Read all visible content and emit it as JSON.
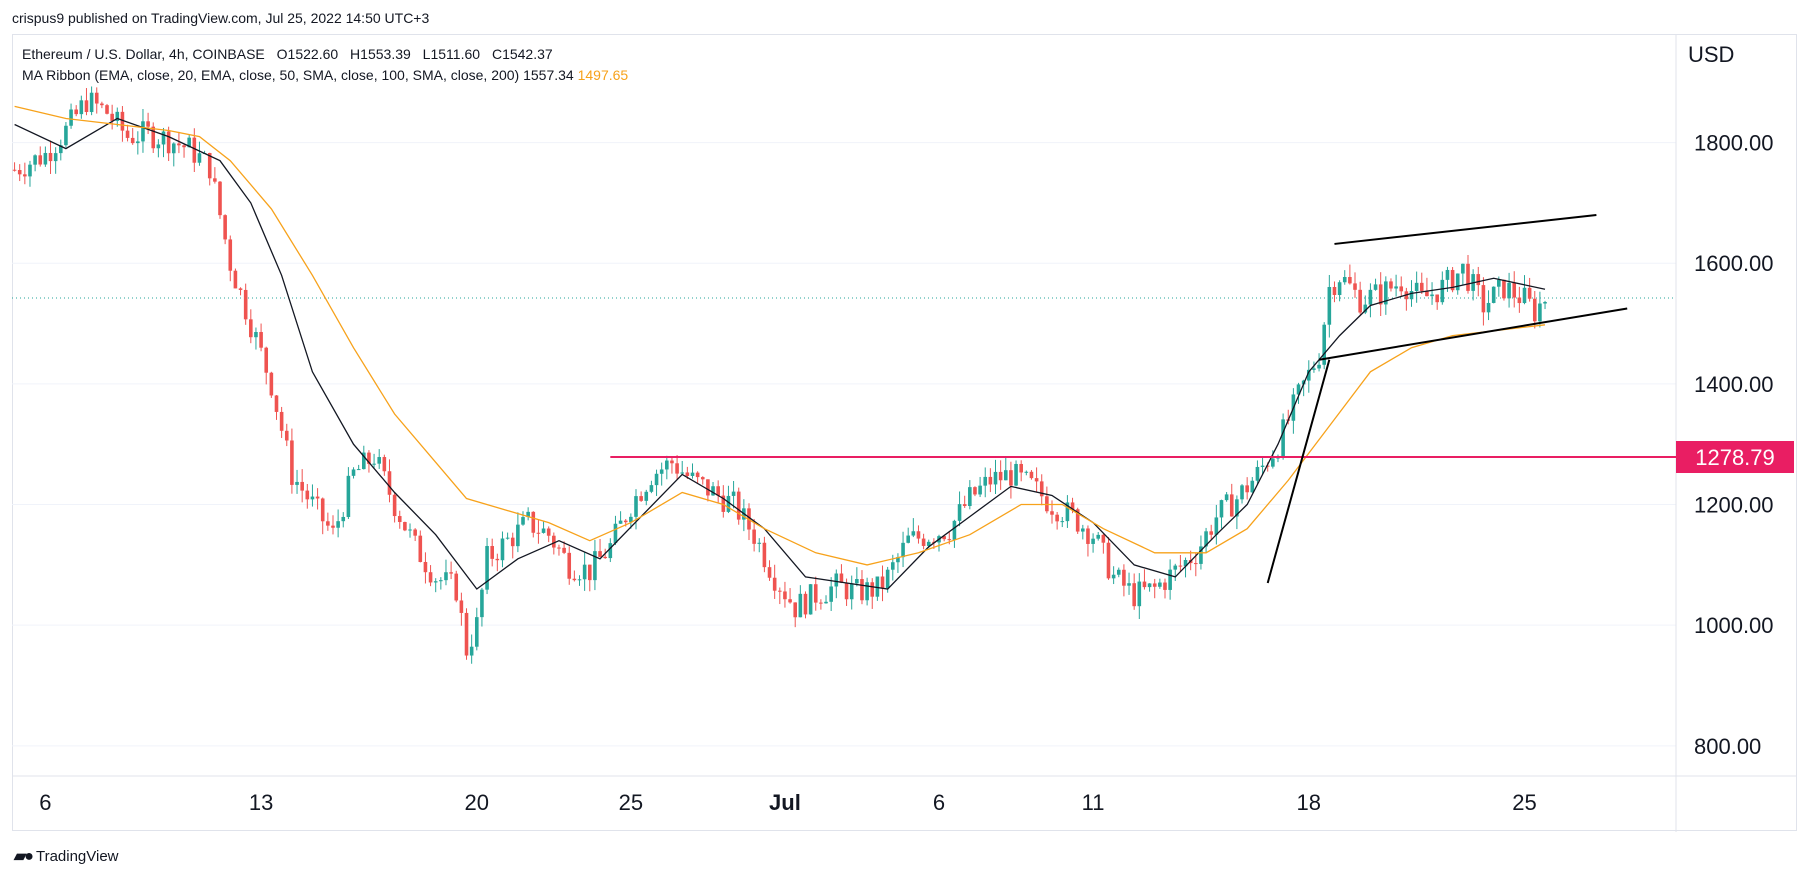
{
  "header": {
    "published": "crispus9 published on TradingView.com, Jul 25, 2022 14:50 UTC+3"
  },
  "legend": {
    "symbol": "Ethereum / U.S. Dollar, 4h, COINBASE",
    "o_label": "O",
    "o": "1522.60",
    "h_label": "H",
    "h": "1553.39",
    "l_label": "L",
    "l": "1511.60",
    "c_label": "C",
    "c": "1542.37",
    "indicator": "MA Ribbon (EMA, close, 20, EMA, close, 50, SMA, close, 100, SMA, close, 200)",
    "ma1": "1557.34",
    "ma2": "1497.65"
  },
  "footer": {
    "brand": "TradingView"
  },
  "colors": {
    "up": "#26a69a",
    "down": "#ef5350",
    "ema20": "#131722",
    "ema50": "#f7a21b",
    "level": "#e91e63",
    "grid": "#e0e3eb"
  },
  "chart_data": {
    "type": "candlestick",
    "currency": "USD",
    "last_price": 1542.37,
    "ylim": [
      750,
      1980
    ],
    "y_ticks": [
      "800.00",
      "1000.00",
      "1200.00",
      "1400.00",
      "1600.00",
      "1800.00"
    ],
    "y_tick_values": [
      800,
      1000,
      1200,
      1400,
      1600,
      1800
    ],
    "x_labels": [
      "6",
      "13",
      "20",
      "25",
      "Jul",
      "6",
      "11",
      "18",
      "25"
    ],
    "x_label_index": [
      6,
      48,
      90,
      120,
      150,
      180,
      210,
      252,
      294
    ],
    "horizontal_level": {
      "value": 1278.79,
      "label": "1278.79",
      "from_index": 116
    },
    "close_path": [
      [
        0,
        1755
      ],
      [
        6,
        1780
      ],
      [
        10,
        1820
      ],
      [
        14,
        1870
      ],
      [
        18,
        1850
      ],
      [
        22,
        1810
      ],
      [
        26,
        1815
      ],
      [
        30,
        1805
      ],
      [
        34,
        1790
      ],
      [
        38,
        1760
      ],
      [
        42,
        1600
      ],
      [
        46,
        1500
      ],
      [
        50,
        1400
      ],
      [
        54,
        1250
      ],
      [
        58,
        1200
      ],
      [
        62,
        1150
      ],
      [
        66,
        1250
      ],
      [
        70,
        1280
      ],
      [
        74,
        1200
      ],
      [
        78,
        1130
      ],
      [
        82,
        1080
      ],
      [
        86,
        1060
      ],
      [
        88,
        960
      ],
      [
        90,
        1000
      ],
      [
        92,
        1110
      ],
      [
        96,
        1140
      ],
      [
        100,
        1170
      ],
      [
        104,
        1150
      ],
      [
        108,
        1100
      ],
      [
        112,
        1090
      ],
      [
        116,
        1130
      ],
      [
        120,
        1200
      ],
      [
        124,
        1250
      ],
      [
        128,
        1270
      ],
      [
        132,
        1240
      ],
      [
        136,
        1220
      ],
      [
        140,
        1200
      ],
      [
        144,
        1150
      ],
      [
        148,
        1080
      ],
      [
        152,
        1030
      ],
      [
        156,
        1050
      ],
      [
        160,
        1065
      ],
      [
        164,
        1055
      ],
      [
        168,
        1060
      ],
      [
        170,
        1080
      ],
      [
        174,
        1140
      ],
      [
        178,
        1150
      ],
      [
        182,
        1160
      ],
      [
        186,
        1210
      ],
      [
        190,
        1240
      ],
      [
        194,
        1250
      ],
      [
        198,
        1230
      ],
      [
        202,
        1200
      ],
      [
        206,
        1180
      ],
      [
        210,
        1150
      ],
      [
        214,
        1080
      ],
      [
        218,
        1050
      ],
      [
        222,
        1060
      ],
      [
        226,
        1090
      ],
      [
        230,
        1120
      ],
      [
        234,
        1180
      ],
      [
        238,
        1210
      ],
      [
        242,
        1250
      ],
      [
        246,
        1300
      ],
      [
        250,
        1380
      ],
      [
        254,
        1450
      ],
      [
        256,
        1560
      ],
      [
        258,
        1580
      ],
      [
        262,
        1540
      ],
      [
        266,
        1550
      ],
      [
        270,
        1570
      ],
      [
        274,
        1540
      ],
      [
        278,
        1560
      ],
      [
        282,
        1590
      ],
      [
        286,
        1530
      ],
      [
        290,
        1560
      ],
      [
        294,
        1540
      ],
      [
        296,
        1520
      ],
      [
        298,
        1542
      ]
    ],
    "ema20_path": [
      [
        0,
        1830
      ],
      [
        10,
        1790
      ],
      [
        20,
        1840
      ],
      [
        30,
        1810
      ],
      [
        40,
        1770
      ],
      [
        46,
        1700
      ],
      [
        52,
        1580
      ],
      [
        58,
        1420
      ],
      [
        66,
        1300
      ],
      [
        74,
        1220
      ],
      [
        82,
        1150
      ],
      [
        90,
        1060
      ],
      [
        98,
        1110
      ],
      [
        106,
        1140
      ],
      [
        114,
        1110
      ],
      [
        122,
        1180
      ],
      [
        130,
        1250
      ],
      [
        138,
        1210
      ],
      [
        146,
        1160
      ],
      [
        154,
        1080
      ],
      [
        162,
        1070
      ],
      [
        170,
        1060
      ],
      [
        178,
        1130
      ],
      [
        186,
        1180
      ],
      [
        194,
        1230
      ],
      [
        202,
        1215
      ],
      [
        210,
        1170
      ],
      [
        218,
        1100
      ],
      [
        226,
        1080
      ],
      [
        234,
        1150
      ],
      [
        240,
        1200
      ],
      [
        246,
        1300
      ],
      [
        252,
        1420
      ],
      [
        258,
        1480
      ],
      [
        264,
        1530
      ],
      [
        272,
        1550
      ],
      [
        280,
        1560
      ],
      [
        288,
        1575
      ],
      [
        298,
        1557
      ]
    ],
    "ema50_path": [
      [
        0,
        1860
      ],
      [
        10,
        1840
      ],
      [
        20,
        1830
      ],
      [
        30,
        1820
      ],
      [
        36,
        1810
      ],
      [
        42,
        1770
      ],
      [
        50,
        1690
      ],
      [
        58,
        1580
      ],
      [
        66,
        1460
      ],
      [
        74,
        1350
      ],
      [
        82,
        1270
      ],
      [
        88,
        1210
      ],
      [
        96,
        1190
      ],
      [
        104,
        1170
      ],
      [
        112,
        1140
      ],
      [
        120,
        1170
      ],
      [
        130,
        1220
      ],
      [
        138,
        1200
      ],
      [
        146,
        1160
      ],
      [
        156,
        1120
      ],
      [
        166,
        1100
      ],
      [
        176,
        1120
      ],
      [
        186,
        1150
      ],
      [
        196,
        1200
      ],
      [
        204,
        1200
      ],
      [
        212,
        1160
      ],
      [
        222,
        1120
      ],
      [
        232,
        1120
      ],
      [
        240,
        1160
      ],
      [
        248,
        1240
      ],
      [
        256,
        1330
      ],
      [
        264,
        1420
      ],
      [
        272,
        1460
      ],
      [
        280,
        1480
      ],
      [
        290,
        1490
      ],
      [
        298,
        1498
      ]
    ],
    "trendlines": [
      {
        "name": "rising-support",
        "from": [
          244,
          1070
        ],
        "to": [
          256,
          1440
        ]
      },
      {
        "name": "channel-lower",
        "from": [
          254,
          1440
        ],
        "to": [
          314,
          1525
        ]
      },
      {
        "name": "channel-upper",
        "from": [
          257,
          1632
        ],
        "to": [
          308,
          1680
        ]
      }
    ]
  }
}
